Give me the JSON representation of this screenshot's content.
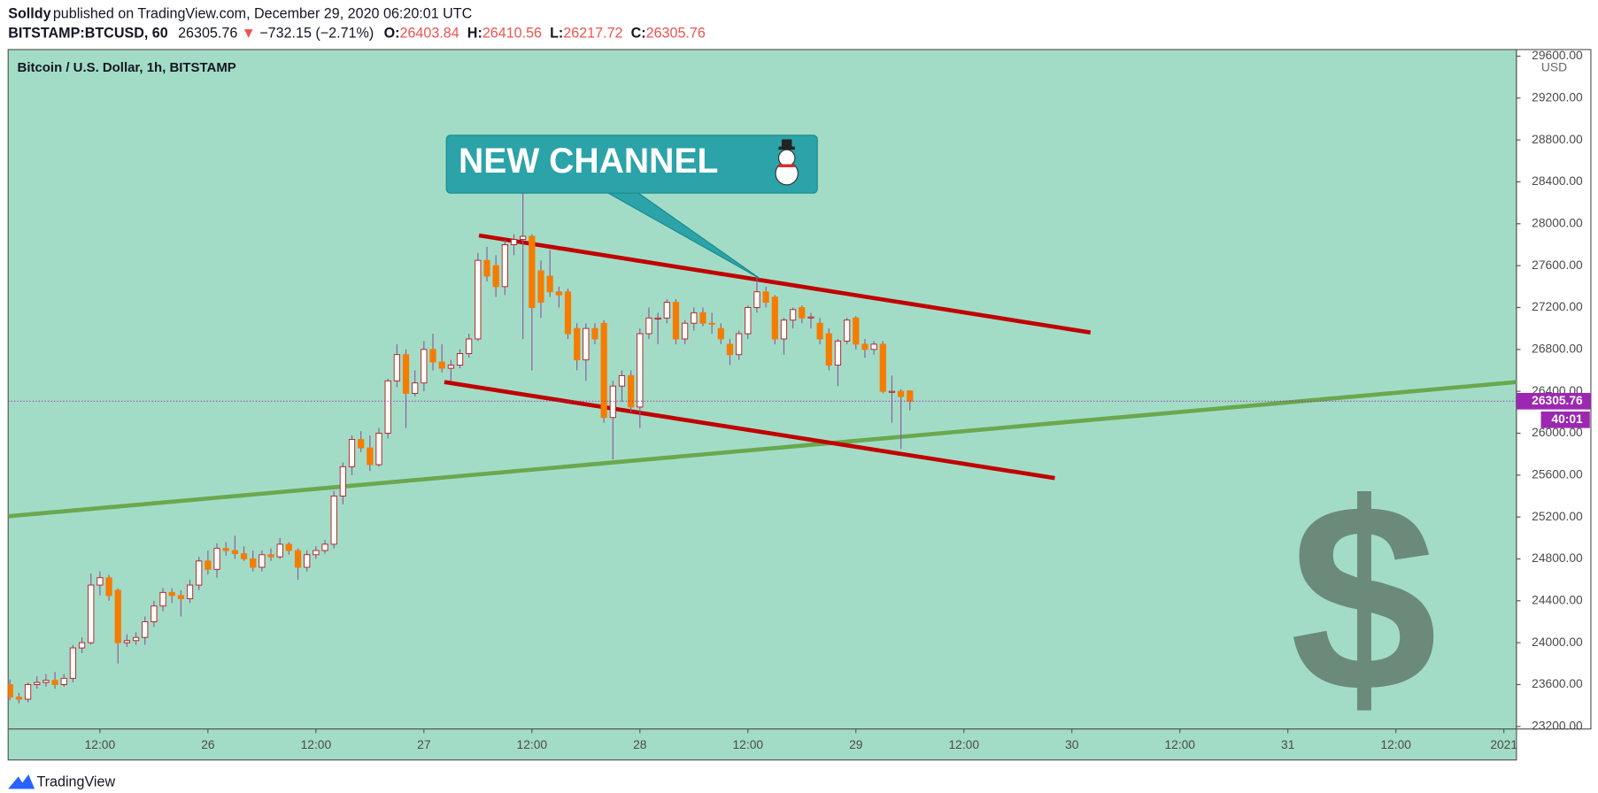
{
  "chart_data": {
    "type": "candlestick",
    "author": "Solldy",
    "published": "published on TradingView.com, December 29, 2020 06:20:01 UTC",
    "symbol": "BITSTAMP:BTCUSD, 60",
    "change_arrow": "▼",
    "change": "−732.15 (−2.71%)",
    "ohlc_labels": [
      "O:",
      "H:",
      "L:",
      "C:"
    ],
    "legend": "Bitcoin / U.S. Dollar, 1h, BITSTAMP",
    "currency": "USD",
    "countdown": "40:01",
    "annotation": "NEW CHANNEL",
    "brand": "TradingView",
    "up_color": "#ffffff",
    "up_border": "#b71c1c",
    "down_color": "#f57c00",
    "wick_color": "#8e5a9e",
    "background": "#a3dcc6",
    "grid": false,
    "xlim": [
      1.8,
      169.4
    ],
    "ylim": [
      23176,
      29663
    ],
    "xticks": [
      {
        "value": 12,
        "label": "12:00"
      },
      {
        "value": 24,
        "label": "26"
      },
      {
        "value": 36,
        "label": "12:00"
      },
      {
        "value": 48,
        "label": "27"
      },
      {
        "value": 60,
        "label": "12:00"
      },
      {
        "value": 72,
        "label": "28"
      },
      {
        "value": 84,
        "label": "12:00"
      },
      {
        "value": 96,
        "label": "29"
      },
      {
        "value": 108,
        "label": "12:00"
      },
      {
        "value": 120,
        "label": "30"
      },
      {
        "value": 132,
        "label": "12:00"
      },
      {
        "value": 144,
        "label": "31"
      },
      {
        "value": 156,
        "label": "12:00"
      },
      {
        "value": 168,
        "label": "2021"
      }
    ],
    "yticks": [
      {
        "value": 23200,
        "label": "23200.00"
      },
      {
        "value": 23600,
        "label": "23600.00"
      },
      {
        "value": 24000,
        "label": "24000.00"
      },
      {
        "value": 24400,
        "label": "24400.00"
      },
      {
        "value": 24800,
        "label": "24800.00"
      },
      {
        "value": 25200,
        "label": "25200.00"
      },
      {
        "value": 25600,
        "label": "25600.00"
      },
      {
        "value": 26000,
        "label": "26000.00"
      },
      {
        "value": 26400,
        "label": "26400.00"
      },
      {
        "value": 26800,
        "label": "26800.00"
      },
      {
        "value": 27200,
        "label": "27200.00"
      },
      {
        "value": 27600,
        "label": "27600.00"
      },
      {
        "value": 28000,
        "label": "28000.00"
      },
      {
        "value": 28400,
        "label": "28400.00"
      },
      {
        "value": 28800,
        "label": "28800.00"
      },
      {
        "value": 29200,
        "label": "29200.00"
      },
      {
        "value": 29600,
        "label": "29600.00"
      }
    ],
    "x": [
      2,
      3,
      4,
      5,
      6,
      7,
      8,
      9,
      10,
      11,
      12,
      13,
      14,
      15,
      16,
      17,
      18,
      19,
      20,
      21,
      22,
      23,
      24,
      25,
      26,
      27,
      28,
      29,
      30,
      31,
      32,
      33,
      34,
      35,
      36,
      37,
      38,
      39,
      40,
      41,
      42,
      43,
      44,
      45,
      46,
      47,
      48,
      49,
      50,
      51,
      52,
      53,
      54,
      55,
      56,
      57,
      58,
      59,
      60,
      61,
      62,
      63,
      64,
      65,
      66,
      67,
      68,
      69,
      70,
      71,
      72,
      73,
      74,
      75,
      76,
      77,
      78,
      79,
      80,
      81,
      82,
      83,
      84,
      85,
      86,
      87,
      88,
      89,
      90,
      91,
      92,
      93,
      94,
      95,
      96,
      97,
      98,
      99,
      100,
      101,
      102
    ],
    "candles": [
      [
        23600,
        23650,
        23450,
        23480
      ],
      [
        23480,
        23520,
        23420,
        23460
      ],
      [
        23460,
        23620,
        23430,
        23600
      ],
      [
        23600,
        23680,
        23560,
        23620
      ],
      [
        23620,
        23700,
        23580,
        23640
      ],
      [
        23640,
        23720,
        23560,
        23600
      ],
      [
        23600,
        23700,
        23580,
        23660
      ],
      [
        23660,
        23980,
        23620,
        23950
      ],
      [
        23950,
        24050,
        23900,
        24000
      ],
      [
        24000,
        24660,
        23980,
        24550
      ],
      [
        24550,
        24680,
        24450,
        24620
      ],
      [
        24620,
        24650,
        24400,
        24450
      ],
      [
        24500,
        24520,
        23800,
        24000
      ],
      [
        24000,
        24080,
        23960,
        24020
      ],
      [
        24020,
        24100,
        23980,
        24050
      ],
      [
        24050,
        24250,
        23980,
        24200
      ],
      [
        24200,
        24400,
        24150,
        24350
      ],
      [
        24350,
        24520,
        24300,
        24480
      ],
      [
        24480,
        24520,
        24380,
        24450
      ],
      [
        24450,
        24500,
        24250,
        24420
      ],
      [
        24420,
        24600,
        24380,
        24550
      ],
      [
        24550,
        24820,
        24500,
        24780
      ],
      [
        24780,
        24880,
        24650,
        24700
      ],
      [
        24700,
        24950,
        24620,
        24900
      ],
      [
        24900,
        24960,
        24830,
        24880
      ],
      [
        24880,
        25020,
        24800,
        24850
      ],
      [
        24850,
        24920,
        24780,
        24800
      ],
      [
        24800,
        24880,
        24680,
        24720
      ],
      [
        24720,
        24880,
        24680,
        24840
      ],
      [
        24840,
        24900,
        24780,
        24820
      ],
      [
        24820,
        25000,
        24800,
        24940
      ],
      [
        24940,
        24960,
        24840,
        24880
      ],
      [
        24880,
        24900,
        24600,
        24720
      ],
      [
        24720,
        24880,
        24680,
        24840
      ],
      [
        24840,
        24920,
        24800,
        24880
      ],
      [
        24880,
        24980,
        24850,
        24940
      ],
      [
        24940,
        25450,
        24900,
        25400
      ],
      [
        25400,
        25720,
        25320,
        25680
      ],
      [
        25680,
        25980,
        25600,
        25940
      ],
      [
        25940,
        26020,
        25820,
        25860
      ],
      [
        25860,
        25980,
        25640,
        25700
      ],
      [
        25700,
        26050,
        25680,
        26000
      ],
      [
        26000,
        26520,
        25950,
        26500
      ],
      [
        26500,
        26850,
        26440,
        26750
      ],
      [
        26750,
        26800,
        26050,
        26380
      ],
      [
        26380,
        26600,
        26350,
        26480
      ],
      [
        26480,
        26880,
        26400,
        26800
      ],
      [
        26800,
        26950,
        26600,
        26680
      ],
      [
        26680,
        26850,
        26580,
        26620
      ],
      [
        26620,
        26700,
        26500,
        26650
      ],
      [
        26650,
        26800,
        26620,
        26760
      ],
      [
        26760,
        26950,
        26720,
        26900
      ],
      [
        26900,
        27720,
        26880,
        27650
      ],
      [
        27650,
        27780,
        27450,
        27500
      ],
      [
        27600,
        27700,
        27300,
        27400
      ],
      [
        27400,
        27850,
        27320,
        27800
      ],
      [
        27800,
        27900,
        27700,
        27850
      ],
      [
        27850,
        28400,
        26900,
        27880
      ],
      [
        27880,
        27900,
        26600,
        27200
      ],
      [
        27550,
        27650,
        27100,
        27250
      ],
      [
        27500,
        27750,
        27300,
        27350
      ],
      [
        27350,
        27400,
        27200,
        27320
      ],
      [
        27350,
        27380,
        26900,
        26950
      ],
      [
        27000,
        27050,
        26600,
        26700
      ],
      [
        26700,
        27050,
        26500,
        27000
      ],
      [
        27000,
        27050,
        26850,
        26900
      ],
      [
        27050,
        27080,
        26100,
        26150
      ],
      [
        26150,
        26500,
        25750,
        26450
      ],
      [
        26450,
        26600,
        26300,
        26550
      ],
      [
        26550,
        26600,
        26200,
        26250
      ],
      [
        26250,
        27000,
        26050,
        26950
      ],
      [
        26950,
        27200,
        26900,
        27100
      ],
      [
        27100,
        27150,
        26850,
        27100
      ],
      [
        27100,
        27280,
        27050,
        27250
      ],
      [
        27250,
        27280,
        26850,
        26900
      ],
      [
        26900,
        27080,
        26850,
        27050
      ],
      [
        27050,
        27200,
        26980,
        27150
      ],
      [
        27150,
        27200,
        27020,
        27050
      ],
      [
        27050,
        27150,
        26950,
        27040
      ],
      [
        27000,
        27050,
        26850,
        26900
      ],
      [
        26850,
        26900,
        26650,
        26750
      ],
      [
        26750,
        26980,
        26700,
        26950
      ],
      [
        26950,
        27220,
        26900,
        27200
      ],
      [
        27200,
        27500,
        27150,
        27350
      ],
      [
        27350,
        27400,
        27200,
        27250
      ],
      [
        27300,
        27320,
        26850,
        26900
      ],
      [
        26900,
        27100,
        26750,
        27080
      ],
      [
        27080,
        27200,
        27000,
        27180
      ],
      [
        27200,
        27220,
        27050,
        27100
      ],
      [
        27100,
        27150,
        27000,
        27110
      ],
      [
        27050,
        27100,
        26850,
        26900
      ],
      [
        26950,
        27000,
        26600,
        26650
      ],
      [
        26650,
        26900,
        26450,
        26880
      ],
      [
        26880,
        27100,
        26850,
        27080
      ],
      [
        27100,
        27120,
        26800,
        26850
      ],
      [
        26850,
        26900,
        26720,
        26800
      ],
      [
        26800,
        26880,
        26750,
        26850
      ],
      [
        26850,
        26880,
        26380,
        26400
      ],
      [
        26400,
        26550,
        26100,
        26400
      ],
      [
        26400,
        26420,
        25850,
        26350
      ],
      [
        26403.84,
        26410.56,
        26217.72,
        26305.76
      ]
    ]
  }
}
